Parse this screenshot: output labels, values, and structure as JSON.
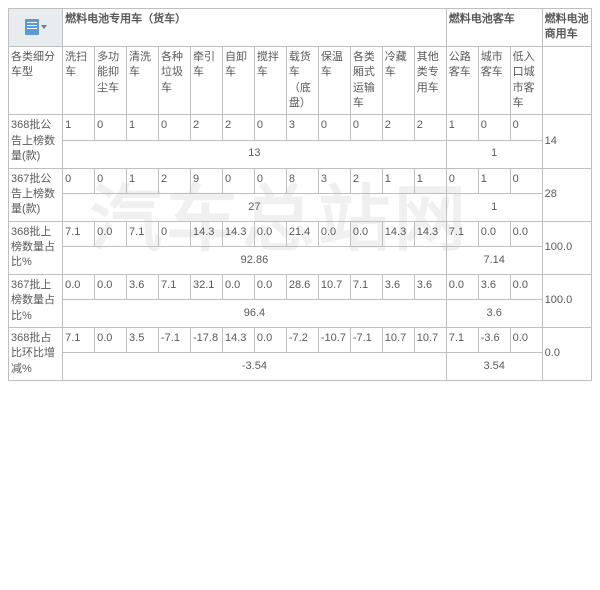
{
  "watermark": "汽车总站网",
  "header_groups": {
    "g1": "燃料电池专用车（货车）",
    "g2": "燃料电池客车",
    "g3": "燃料电池商用车"
  },
  "row_label_header": "各类细分车型",
  "subcols": {
    "c1": "洗扫车",
    "c2": "多功能抑尘车",
    "c3": "清洗车",
    "c4": "各种垃圾车",
    "c5": "牵引车",
    "c6": "自卸车",
    "c7": "搅拌车",
    "c8": "载货车（底盘）",
    "c9": "保温车",
    "c10": "各类厢式运输车",
    "c11": "冷藏车",
    "c12": "其他类专用车",
    "c13": "公路客车",
    "c14": "城市客车",
    "c15": "低入口城市客车"
  },
  "rows": {
    "r1": {
      "label": "368批公告上榜数量(款)",
      "v": [
        "1",
        "0",
        "1",
        "0",
        "2",
        "2",
        "0",
        "3",
        "0",
        "0",
        "2",
        "2",
        "1",
        "0",
        "0"
      ],
      "sub_a": "13",
      "sub_b": "1",
      "total": "14"
    },
    "r2": {
      "label": "367批公告上榜数量(款)",
      "v": [
        "0",
        "0",
        "1",
        "2",
        "9",
        "0",
        "0",
        "8",
        "3",
        "2",
        "1",
        "1",
        "0",
        "1",
        "0"
      ],
      "sub_a": "27",
      "sub_b": "1",
      "total": "28"
    },
    "r3": {
      "label": "368批上榜数量占比%",
      "v": [
        "7.1",
        "0.0",
        "7.1",
        "0",
        "14.3",
        "14.3",
        "0.0",
        "21.4",
        "0.0",
        "0.0",
        "14.3",
        "14.3",
        "7.1",
        "0.0",
        "0.0"
      ],
      "sub_a": "92.86",
      "sub_b": "7.14",
      "total": "100.0"
    },
    "r4": {
      "label": "367批上榜数量占比%",
      "v": [
        "0.0",
        "0.0",
        "3.6",
        "7.1",
        "32.1",
        "0.0",
        "0.0",
        "28.6",
        "10.7",
        "7.1",
        "3.6",
        "3.6",
        "0.0",
        "3.6",
        "0.0"
      ],
      "sub_a": "96.4",
      "sub_b": "3.6",
      "total": "100.0"
    },
    "r5": {
      "label": "368批占比环比增减%",
      "v": [
        "7.1",
        "0.0",
        "3.5",
        "-7.1",
        "-17.8",
        "14.3",
        "0.0",
        "-7.2",
        "-10.7",
        "-7.1",
        "10.7",
        "10.7",
        "7.1",
        "-3.6",
        "0.0"
      ],
      "sub_a": "-3.54",
      "sub_b": "3.54",
      "total": "0.0"
    }
  }
}
